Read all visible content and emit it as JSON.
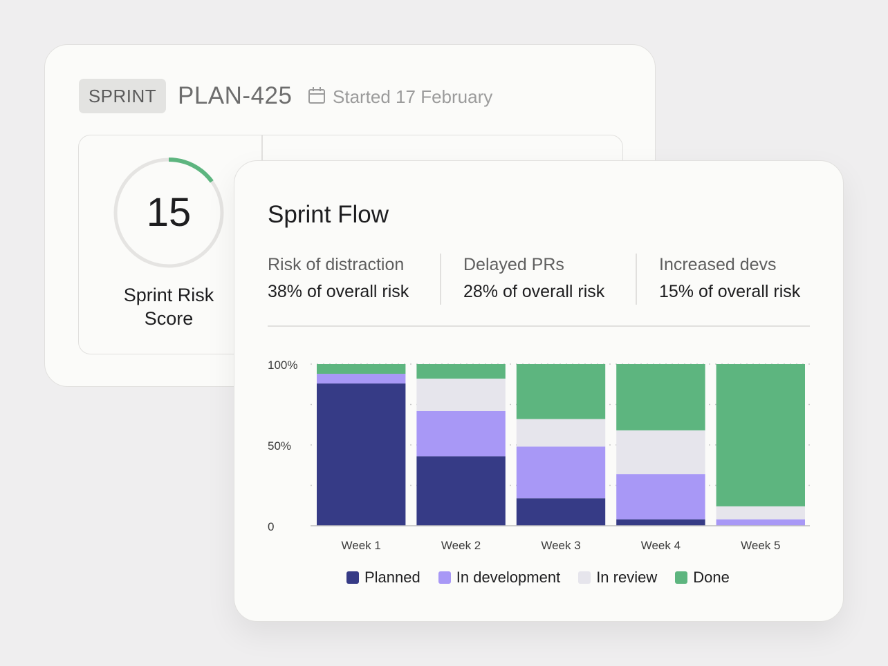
{
  "sprint_card": {
    "badge": "SPRINT",
    "plan_id": "PLAN-425",
    "started": "Started 17 February",
    "risk_score": "15",
    "risk_score_fraction": 0.15,
    "risk_label_line1": "Sprint Risk",
    "risk_label_line2": "Score"
  },
  "flow_card": {
    "title": "Sprint Flow",
    "metrics": [
      {
        "label": "Risk of distraction",
        "value": "38% of overall risk"
      },
      {
        "label": "Delayed PRs",
        "value": "28% of overall risk"
      },
      {
        "label": "Increased devs",
        "value": "15% of overall risk"
      }
    ]
  },
  "colors": {
    "planned": "#363b86",
    "in_development": "#a898f6",
    "in_review": "#e6e5ec",
    "done": "#5db57f",
    "gauge_track": "#e5e4e2"
  },
  "chart_data": {
    "type": "bar",
    "stacked": true,
    "categories": [
      "Week 1",
      "Week 2",
      "Week 3",
      "Week 4",
      "Week 5"
    ],
    "series": [
      {
        "name": "Planned",
        "values": [
          88,
          43,
          17,
          4,
          0
        ]
      },
      {
        "name": "In development",
        "values": [
          6,
          28,
          32,
          28,
          4
        ]
      },
      {
        "name": "In review",
        "values": [
          0,
          20,
          17,
          27,
          8
        ]
      },
      {
        "name": "Done",
        "values": [
          6,
          9,
          34,
          41,
          88
        ]
      }
    ],
    "y_ticks": [
      "100%",
      "50%",
      "0"
    ],
    "ylim": [
      0,
      100
    ],
    "legend_position": "bottom"
  }
}
